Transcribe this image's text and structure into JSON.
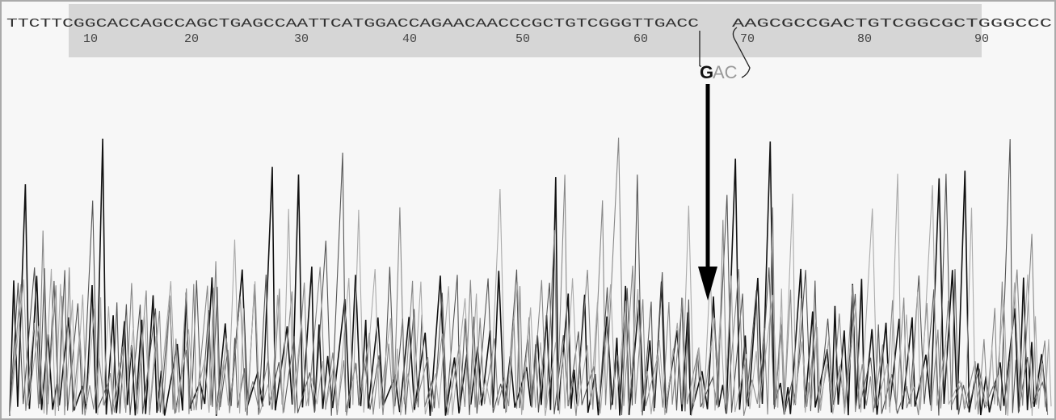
{
  "sequence_left": "TTCTTCGGCACCAGCCAGCTGAGCCAATTCATGGACCAGAACAACCCGCTGTCGGGTTGACC",
  "sequence_right": "AAGCGCCGACTGTCGGCGCTGGGCCC",
  "positions": [
    10,
    20,
    30,
    40,
    50,
    60,
    70,
    80,
    90
  ],
  "insertion": {
    "highlight": "G",
    "rest": "AC"
  }
}
